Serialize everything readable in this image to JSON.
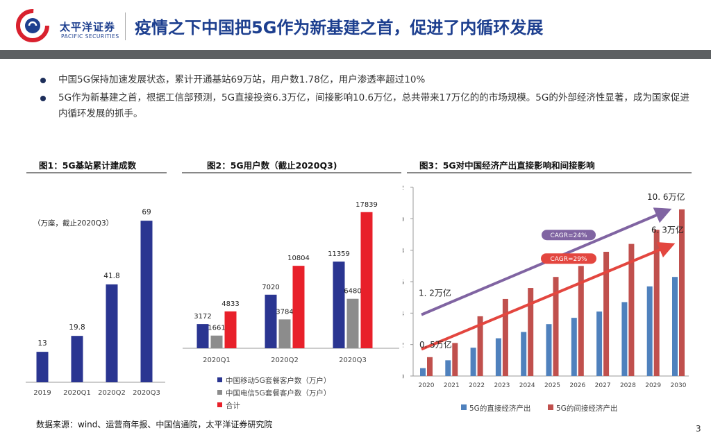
{
  "header": {
    "logo_name": "太平洋证券",
    "logo_en": "PACIFIC SECURITIES",
    "title": "疫情之下中国把5G作为新基建之首，促进了内循环发展"
  },
  "bullets": [
    "中国5G保持加速发展状态，累计开通基站69万站，用户数1.78亿，用户渗透率超过10%",
    "5G作为新基建之首，根据工信部预测，5G直接投资6.3万亿，间接影响10.6万亿，总共带来17万亿的的市场规模。5G的外部经济性显著，成为国家促进内循环发展的抓手。"
  ],
  "source": "数据来源：wind、运营商年报、中国信通院，太平洋证券研究院",
  "page_number": "3",
  "colors": {
    "blue_bar": "#2a3591",
    "gray_bar": "#8c8c8c",
    "red_bar": "#e8202a",
    "direct": "#4f81bd",
    "indirect": "#c0504d",
    "trend_purple": "#8064a2",
    "trend_red": "#e3463f",
    "brand": "#1d3f8f"
  },
  "chart_data": [
    {
      "type": "bar",
      "title": "图1：5G基站累计建成数",
      "unit_note": "（万座，截止2020Q3）",
      "categories": [
        "2019",
        "2020Q1",
        "2020Q2",
        "2020Q3"
      ],
      "values": [
        13,
        19.8,
        41.8,
        69
      ],
      "value_labels": [
        "13",
        "19.8",
        "41.8",
        "69"
      ],
      "ylim": [
        0,
        80
      ]
    },
    {
      "type": "bar",
      "title": "图2：5G用户数（截止2020Q3)",
      "categories": [
        "2020Q1",
        "2020Q2",
        "2020Q3"
      ],
      "series": [
        {
          "name": "中国移动5G套餐客户数（万户）",
          "values": [
            3172,
            7020,
            11359
          ],
          "labels": [
            "3172",
            "7020",
            "11359"
          ]
        },
        {
          "name": "中国电信5G套餐客户数（万户）",
          "values": [
            1661,
            3784,
            6480
          ],
          "labels": [
            "1661",
            "3784",
            "6480"
          ]
        },
        {
          "name": "合计",
          "values": [
            4833,
            10804,
            17839
          ],
          "labels": [
            "4833",
            "10804",
            "17839"
          ]
        }
      ],
      "ylim": [
        0,
        20000
      ]
    },
    {
      "type": "bar",
      "title": "图3：5G对中国经济产出直接影响和间接影响",
      "categories": [
        "2020",
        "2021",
        "2022",
        "2023",
        "2024",
        "2025",
        "2026",
        "2027",
        "2028",
        "2029",
        "2030"
      ],
      "series": [
        {
          "name": "5G的直接经济产出",
          "values": [
            0.5,
            1.0,
            1.8,
            2.4,
            2.8,
            3.3,
            3.7,
            4.1,
            4.7,
            5.7,
            6.3
          ]
        },
        {
          "name": "5G的间接经济产出",
          "values": [
            1.2,
            2.1,
            3.8,
            4.9,
            5.6,
            6.3,
            7.0,
            7.9,
            8.4,
            9.3,
            10.6
          ]
        }
      ],
      "yticks": [
        "0",
        "2",
        "4",
        "6",
        "8",
        "10",
        "12"
      ],
      "ylim": [
        0,
        12
      ],
      "annotations": {
        "start_indirect": "1. 2万亿",
        "start_direct": "0. 5万亿",
        "end_indirect": "10. 6万亿",
        "end_direct": "6. 3万亿",
        "cagr_indirect": "CAGR=24%",
        "cagr_direct": "CAGR=29%"
      }
    }
  ]
}
